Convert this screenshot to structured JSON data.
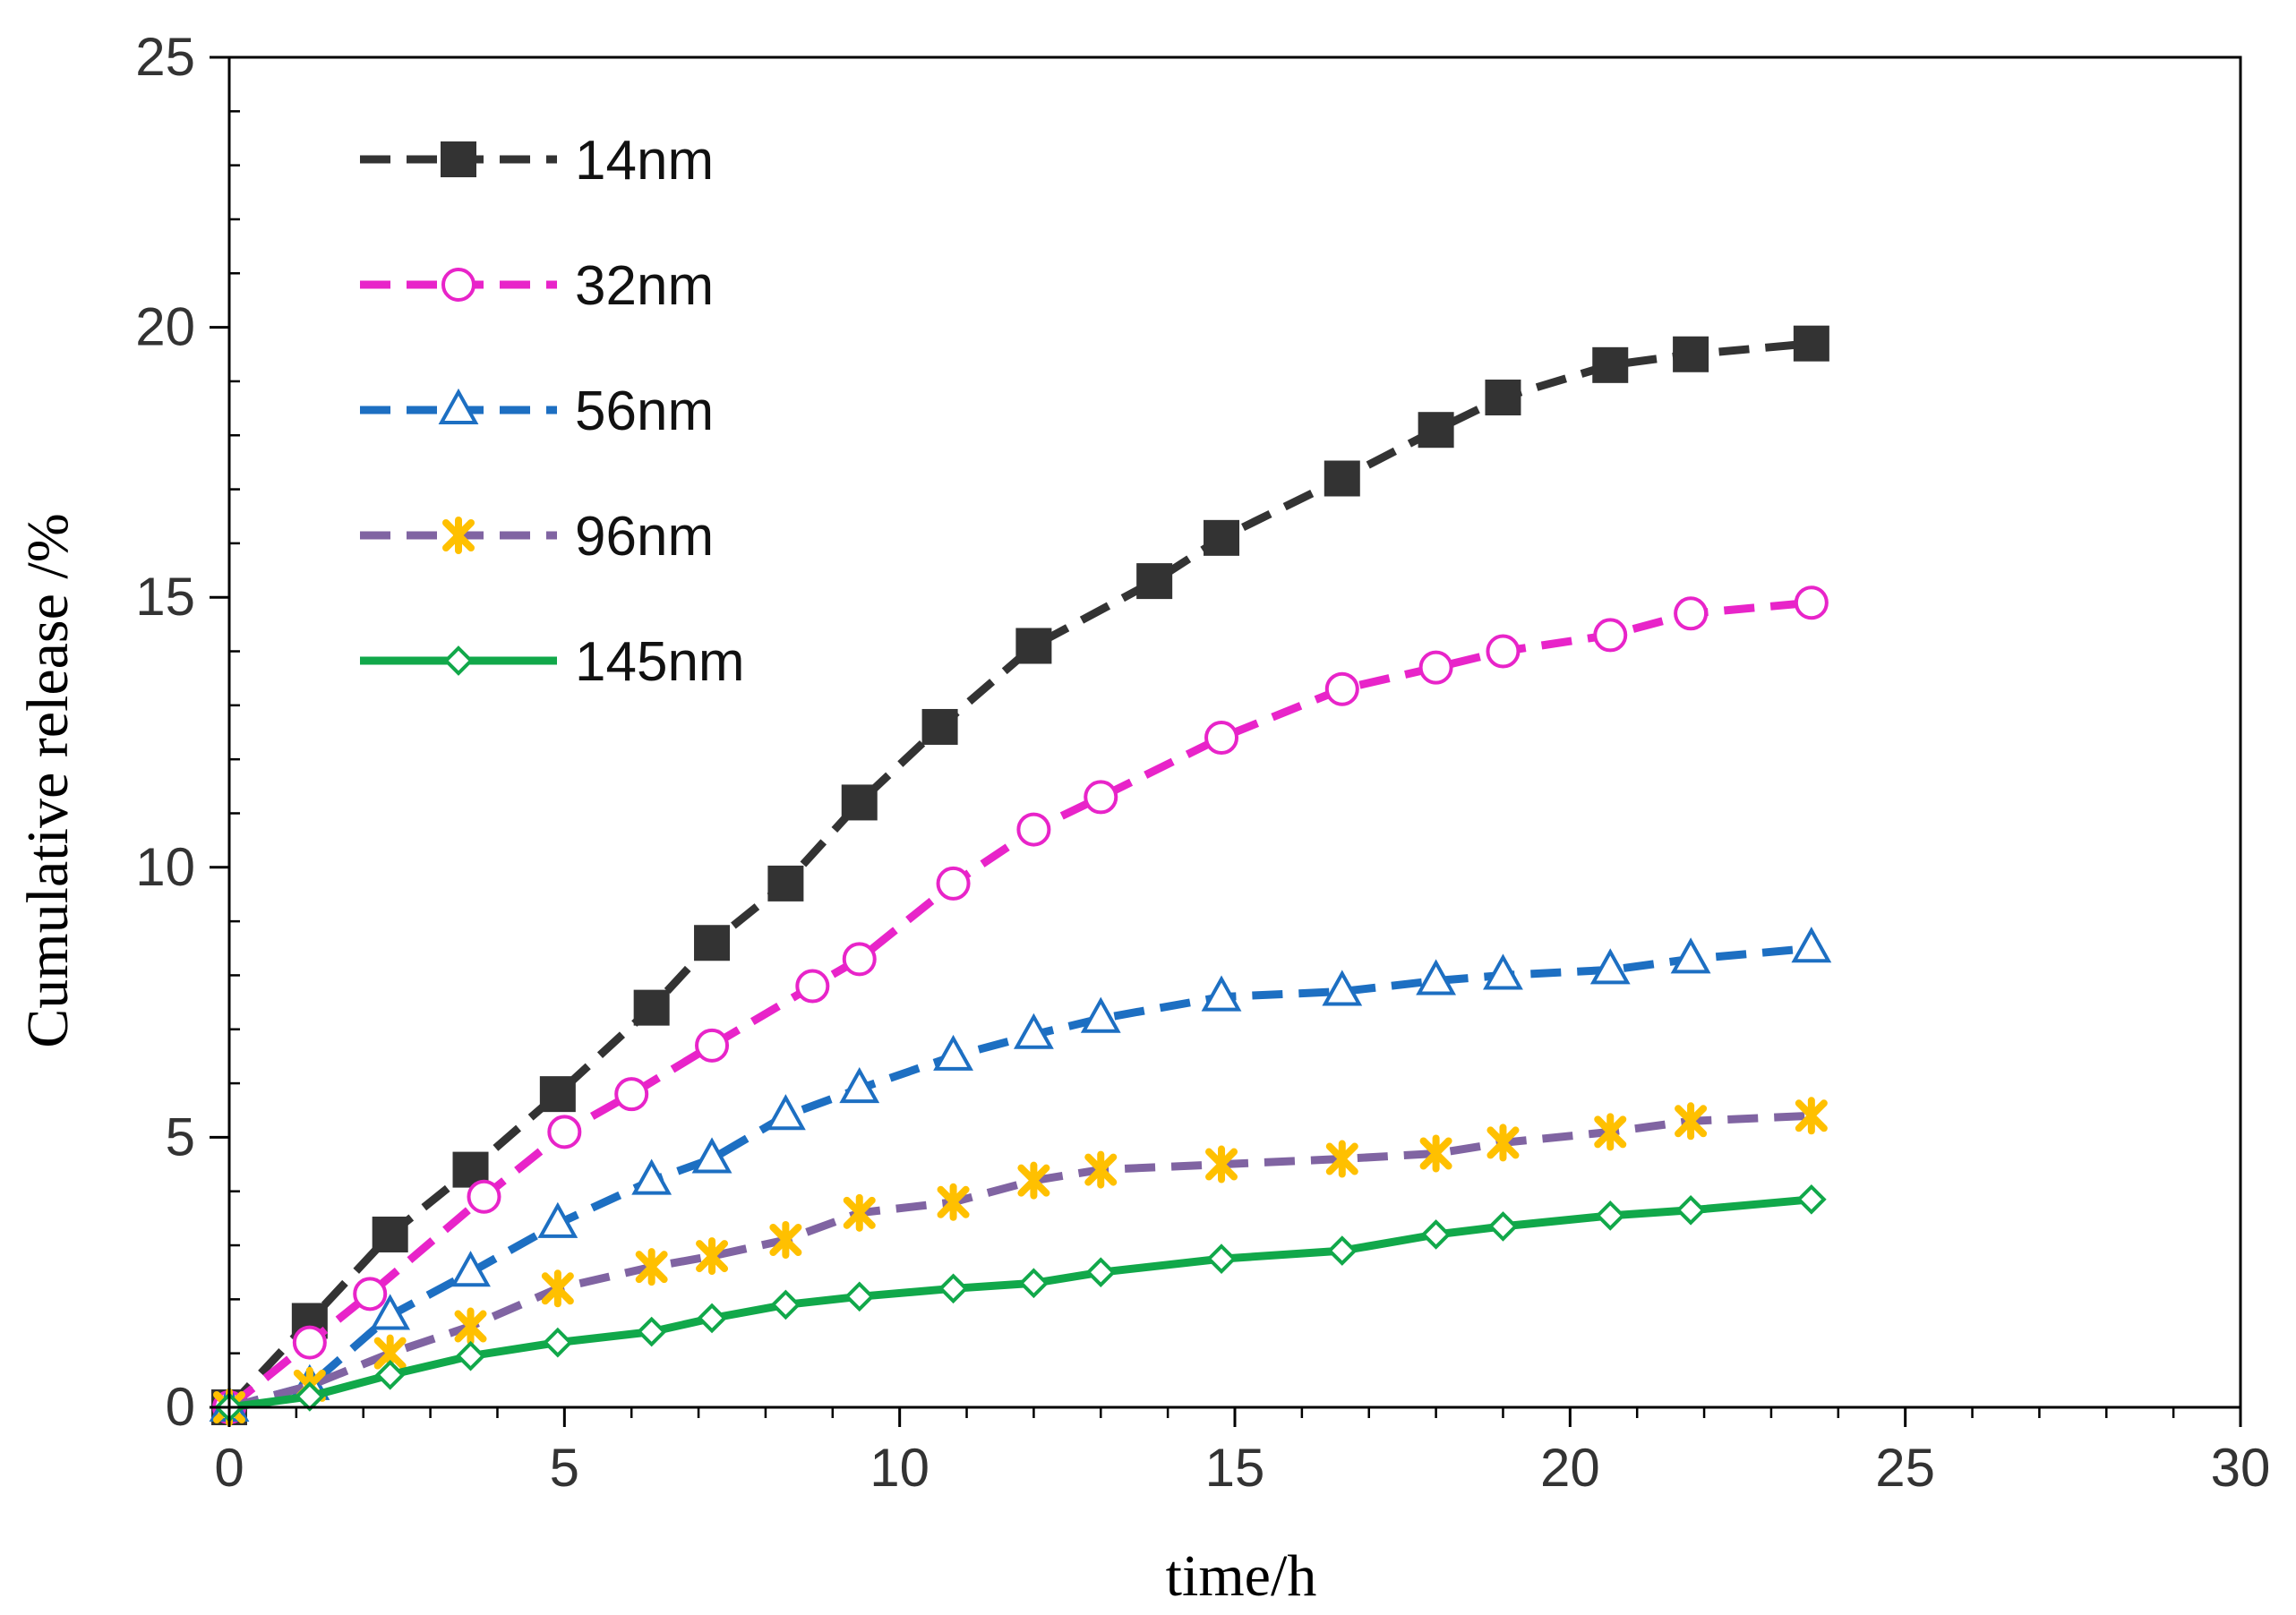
{
  "chart_data": {
    "type": "line",
    "title": "",
    "xlabel": "time/h",
    "ylabel": "Cumulative release /%",
    "xlim": [
      0,
      30
    ],
    "ylim": [
      0,
      25
    ],
    "x_major_ticks": [
      0,
      5,
      10,
      15,
      20,
      25,
      30
    ],
    "y_major_ticks": [
      0,
      5,
      10,
      15,
      20,
      25
    ],
    "x_tick_labels": [
      "0",
      "5",
      "10",
      "15",
      "20",
      "25",
      "30"
    ],
    "y_tick_labels": [
      "0",
      "5",
      "10",
      "15",
      "20",
      "25"
    ],
    "grid": false,
    "legend_position": "top-left",
    "series": [
      {
        "name": "14nm",
        "color": "#333333",
        "marker": "square-filled",
        "line": "dashed",
        "points": [
          [
            0,
            0
          ],
          [
            1.2,
            1.6
          ],
          [
            2.4,
            3.2
          ],
          [
            3.6,
            4.4
          ],
          [
            4.9,
            5.8
          ],
          [
            6.3,
            7.4
          ],
          [
            7.2,
            8.6
          ],
          [
            8.3,
            9.7
          ],
          [
            9.4,
            11.2
          ],
          [
            10.6,
            12.6
          ],
          [
            12.0,
            14.1
          ],
          [
            13.8,
            15.3
          ],
          [
            14.8,
            16.1
          ],
          [
            16.6,
            17.2
          ],
          [
            18.0,
            18.1
          ],
          [
            19.0,
            18.7
          ],
          [
            20.6,
            19.3
          ],
          [
            21.8,
            19.5
          ],
          [
            23.6,
            19.7
          ]
        ]
      },
      {
        "name": "32nm",
        "color": "#e824c9",
        "marker": "circle-open",
        "line": "dashed",
        "points": [
          [
            0,
            0
          ],
          [
            1.2,
            1.2
          ],
          [
            2.1,
            2.1
          ],
          [
            3.8,
            3.9
          ],
          [
            5.0,
            5.1
          ],
          [
            6.0,
            5.8
          ],
          [
            7.2,
            6.7
          ],
          [
            8.7,
            7.8
          ],
          [
            9.4,
            8.3
          ],
          [
            10.8,
            9.7
          ],
          [
            12.0,
            10.7
          ],
          [
            13.0,
            11.3
          ],
          [
            14.8,
            12.4
          ],
          [
            16.6,
            13.3
          ],
          [
            18.0,
            13.7
          ],
          [
            19.0,
            14.0
          ],
          [
            20.6,
            14.3
          ],
          [
            21.8,
            14.7
          ],
          [
            23.6,
            14.9
          ]
        ]
      },
      {
        "name": "56nm",
        "color": "#1d6fc2",
        "marker": "triangle-open",
        "line": "dashed",
        "points": [
          [
            0,
            0
          ],
          [
            1.2,
            0.4
          ],
          [
            2.4,
            1.7
          ],
          [
            3.6,
            2.5
          ],
          [
            4.9,
            3.4
          ],
          [
            6.3,
            4.2
          ],
          [
            7.2,
            4.6
          ],
          [
            8.3,
            5.4
          ],
          [
            9.4,
            5.9
          ],
          [
            10.8,
            6.5
          ],
          [
            12.0,
            6.9
          ],
          [
            13.0,
            7.2
          ],
          [
            14.8,
            7.6
          ],
          [
            16.6,
            7.7
          ],
          [
            18.0,
            7.9
          ],
          [
            19.0,
            8.0
          ],
          [
            20.6,
            8.1
          ],
          [
            21.8,
            8.3
          ],
          [
            23.6,
            8.5
          ]
        ]
      },
      {
        "name": "96nm",
        "color": "#8064a2",
        "marker_color": "#ffc000",
        "marker": "asterisk",
        "line": "dashed",
        "points": [
          [
            0,
            0
          ],
          [
            1.2,
            0.4
          ],
          [
            2.4,
            1.0
          ],
          [
            3.6,
            1.5
          ],
          [
            4.9,
            2.2
          ],
          [
            6.3,
            2.6
          ],
          [
            7.2,
            2.8
          ],
          [
            8.3,
            3.1
          ],
          [
            9.4,
            3.6
          ],
          [
            10.8,
            3.8
          ],
          [
            12.0,
            4.2
          ],
          [
            13.0,
            4.4
          ],
          [
            14.8,
            4.5
          ],
          [
            16.6,
            4.6
          ],
          [
            18.0,
            4.7
          ],
          [
            19.0,
            4.9
          ],
          [
            20.6,
            5.1
          ],
          [
            21.8,
            5.3
          ],
          [
            23.6,
            5.4
          ]
        ]
      },
      {
        "name": "145nm",
        "color": "#11a84a",
        "marker": "diamond-open",
        "line": "solid",
        "points": [
          [
            0,
            0
          ],
          [
            1.2,
            0.2
          ],
          [
            2.4,
            0.6
          ],
          [
            3.6,
            0.95
          ],
          [
            4.9,
            1.2
          ],
          [
            6.3,
            1.4
          ],
          [
            7.2,
            1.65
          ],
          [
            8.3,
            1.9
          ],
          [
            9.4,
            2.05
          ],
          [
            10.8,
            2.2
          ],
          [
            12.0,
            2.3
          ],
          [
            13.0,
            2.5
          ],
          [
            14.8,
            2.75
          ],
          [
            16.6,
            2.9
          ],
          [
            18.0,
            3.2
          ],
          [
            19.0,
            3.35
          ],
          [
            20.6,
            3.55
          ],
          [
            21.8,
            3.65
          ],
          [
            23.6,
            3.85
          ]
        ]
      }
    ]
  }
}
